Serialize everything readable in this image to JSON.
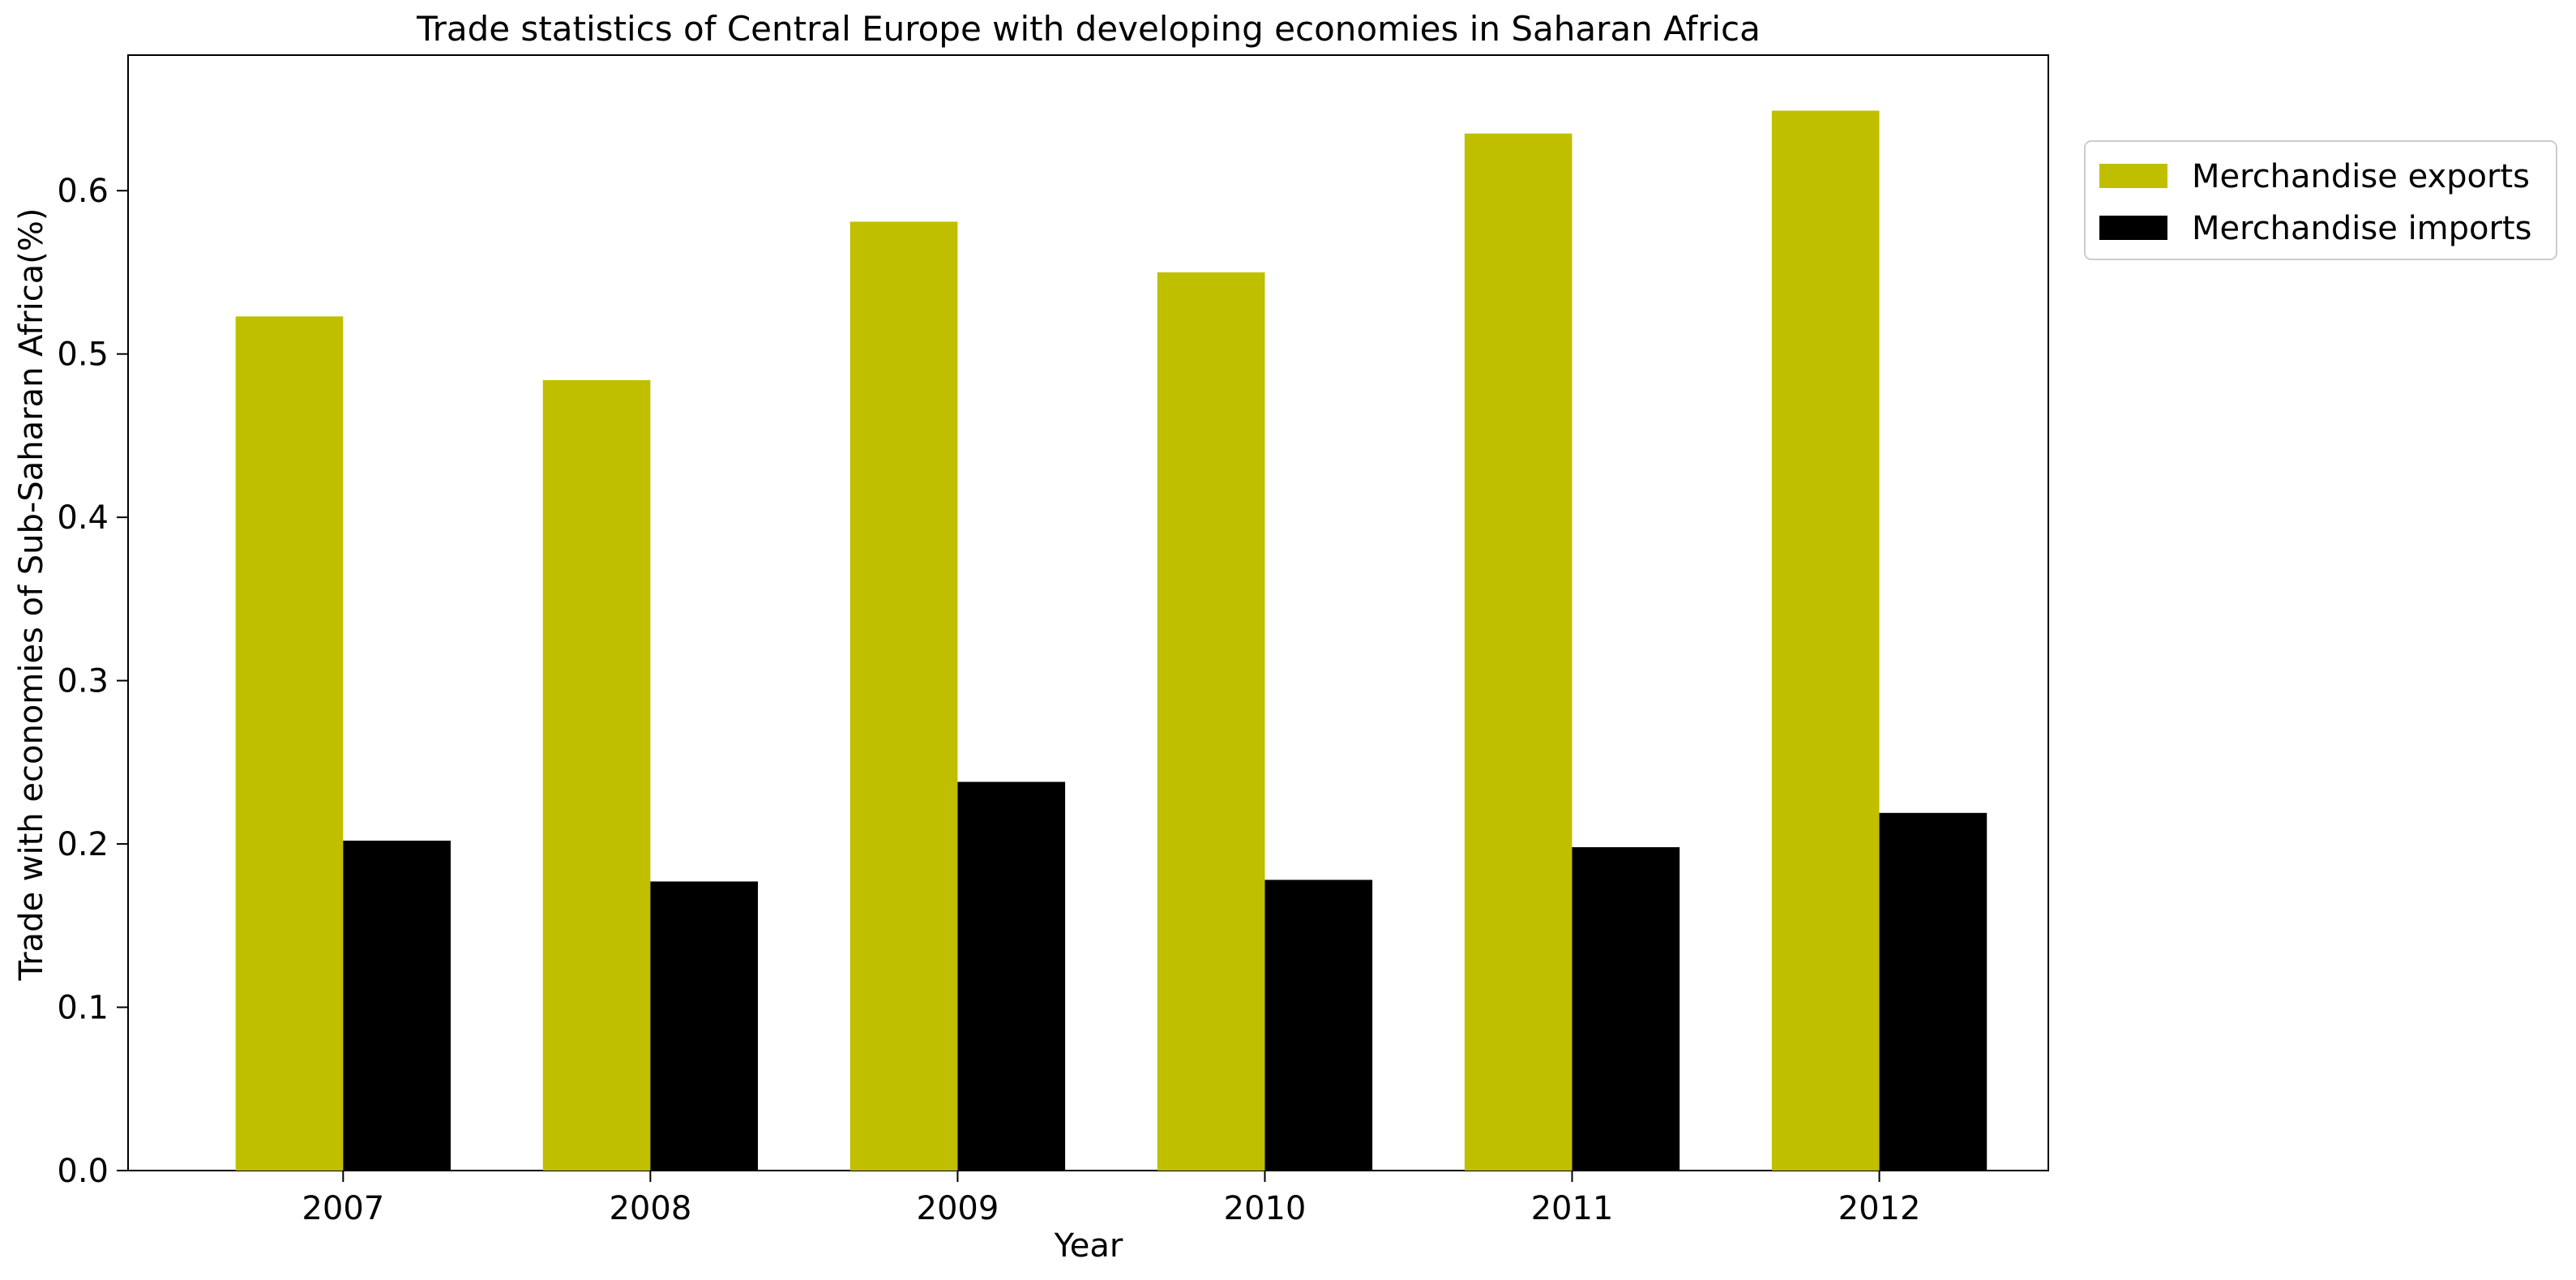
{
  "chart_data": {
    "type": "bar",
    "title": "Trade statistics of Central Europe with developing economies in Saharan Africa",
    "xlabel": "Year",
    "ylabel": "Trade with economies of Sub-Saharan Africa(%)",
    "categories": [
      "2007",
      "2008",
      "2009",
      "2010",
      "2011",
      "2012"
    ],
    "series": [
      {
        "name": "Merchandise exports",
        "color": "#bfbf00",
        "values": [
          0.523,
          0.484,
          0.581,
          0.55,
          0.635,
          0.649
        ]
      },
      {
        "name": "Merchandise imports",
        "color": "#000000",
        "values": [
          0.202,
          0.177,
          0.238,
          0.178,
          0.198,
          0.219
        ]
      }
    ],
    "ylim": [
      0,
      0.683
    ],
    "yticks": [
      "0.0",
      "0.1",
      "0.2",
      "0.3",
      "0.4",
      "0.5",
      "0.6"
    ],
    "grid": false,
    "legend_position": "outside-top-right"
  }
}
